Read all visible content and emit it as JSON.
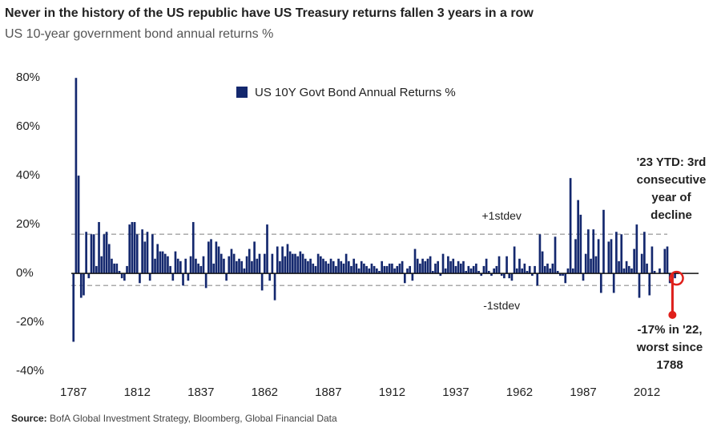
{
  "chart_data": {
    "type": "bar",
    "title": "Never in the history of the US republic have US Treasury returns fallen 3 years in a row",
    "subtitle": "US 10-year government bond annual returns %",
    "source_label": "Source:",
    "source": "BofA Global Investment Strategy, Bloomberg, Global Financial Data",
    "series": [
      {
        "name": "US 10Y Govt Bond Annual Returns %",
        "color": "#14286e",
        "values": [
          -28,
          80,
          40,
          -10,
          -9,
          17,
          -2,
          16,
          16,
          3,
          21,
          7,
          16,
          17,
          12,
          6,
          4,
          4,
          1,
          -2,
          -3,
          3,
          20,
          21,
          21,
          16,
          -4,
          18,
          13,
          17,
          -3,
          16,
          6,
          12,
          9,
          9,
          8,
          7,
          3,
          -3,
          9,
          6,
          5,
          -5,
          6,
          -3,
          7,
          21,
          6,
          4,
          3,
          7,
          -6,
          13,
          14,
          4,
          13,
          11,
          8,
          6,
          -3,
          7,
          10,
          8,
          5,
          6,
          5,
          2,
          7,
          10,
          5,
          13,
          6,
          8,
          -7,
          8,
          20,
          -3,
          8,
          -11,
          11,
          5,
          11,
          7,
          12,
          9,
          8,
          8,
          7,
          9,
          8,
          6,
          5,
          6,
          4,
          3,
          8,
          7,
          6,
          5,
          4,
          6,
          5,
          3,
          6,
          5,
          4,
          8,
          5,
          3,
          6,
          4,
          2,
          5,
          4,
          3,
          2,
          4,
          3,
          2,
          1,
          5,
          3,
          3,
          4,
          4,
          2,
          3,
          4,
          5,
          -4,
          2,
          3,
          -3,
          10,
          6,
          4,
          6,
          5,
          6,
          7,
          1,
          4,
          5,
          -1,
          8,
          2,
          7,
          5,
          6,
          3,
          5,
          4,
          5,
          1,
          3,
          2,
          3,
          4,
          1,
          -1,
          3,
          6,
          1,
          -1,
          2,
          3,
          7,
          -1,
          -2,
          7,
          -2,
          -3,
          11,
          2,
          6,
          2,
          4,
          1,
          3,
          -1,
          3,
          -5,
          16,
          9,
          3,
          4,
          2,
          4,
          15,
          1,
          -1,
          -1,
          -4,
          2,
          39,
          2,
          14,
          30,
          24,
          -3,
          8,
          18,
          6,
          18,
          7,
          14,
          -8,
          26,
          0,
          13,
          14,
          -8,
          17,
          5,
          16,
          2,
          5,
          3,
          2,
          10,
          20,
          -10,
          8,
          17,
          4,
          -9,
          11,
          1,
          0,
          2,
          0,
          10,
          11,
          -4,
          -17,
          -2
        ]
      }
    ],
    "x": [
      1787,
      1788,
      1789,
      1790,
      1791,
      1792,
      1793,
      1794,
      1795,
      1796,
      1797,
      1798,
      1799,
      1800,
      1801,
      1802,
      1803,
      1804,
      1805,
      1806,
      1807,
      1808,
      1809,
      1810,
      1811,
      1812,
      1813,
      1814,
      1815,
      1816,
      1817,
      1818,
      1819,
      1820,
      1821,
      1822,
      1823,
      1824,
      1825,
      1826,
      1827,
      1828,
      1829,
      1830,
      1831,
      1832,
      1833,
      1834,
      1835,
      1836,
      1837,
      1838,
      1839,
      1840,
      1841,
      1842,
      1843,
      1844,
      1845,
      1846,
      1847,
      1848,
      1849,
      1850,
      1851,
      1852,
      1853,
      1854,
      1855,
      1856,
      1857,
      1858,
      1859,
      1860,
      1861,
      1862,
      1863,
      1864,
      1865,
      1866,
      1867,
      1868,
      1869,
      1870,
      1871,
      1872,
      1873,
      1874,
      1875,
      1876,
      1877,
      1878,
      1879,
      1880,
      1881,
      1882,
      1883,
      1884,
      1885,
      1886,
      1887,
      1888,
      1889,
      1890,
      1891,
      1892,
      1893,
      1894,
      1895,
      1896,
      1897,
      1898,
      1899,
      1900,
      1901,
      1902,
      1903,
      1904,
      1905,
      1906,
      1907,
      1908,
      1909,
      1910,
      1911,
      1912,
      1913,
      1914,
      1915,
      1916,
      1917,
      1918,
      1919,
      1920,
      1921,
      1922,
      1923,
      1924,
      1925,
      1926,
      1927,
      1928,
      1929,
      1930,
      1931,
      1932,
      1933,
      1934,
      1935,
      1936,
      1937,
      1938,
      1939,
      1940,
      1941,
      1942,
      1943,
      1944,
      1945,
      1946,
      1947,
      1948,
      1949,
      1950,
      1951,
      1952,
      1953,
      1954,
      1955,
      1956,
      1957,
      1958,
      1959,
      1960,
      1961,
      1962,
      1963,
      1964,
      1965,
      1966,
      1967,
      1968,
      1969,
      1970,
      1971,
      1972,
      1973,
      1974,
      1975,
      1976,
      1977,
      1978,
      1979,
      1980,
      1981,
      1982,
      1983,
      1984,
      1985,
      1986,
      1987,
      1988,
      1989,
      1990,
      1991,
      1992,
      1993,
      1994,
      1995,
      1996,
      1997,
      1998,
      1999,
      2000,
      2001,
      2002,
      2003,
      2004,
      2005,
      2006,
      2007,
      2008,
      2009,
      2010,
      2011,
      2012,
      2013,
      2014,
      2015,
      2016,
      2017,
      2018,
      2019,
      2020,
      2021,
      2022,
      2023
    ],
    "xlim": [
      1783,
      2031
    ],
    "xticks": [
      1787,
      1812,
      1837,
      1862,
      1887,
      1912,
      1937,
      1962,
      1987,
      2012
    ],
    "ylim": [
      -40,
      84
    ],
    "yticks": [
      {
        "value": -40,
        "label": "-40%"
      },
      {
        "value": -20,
        "label": "-20%"
      },
      {
        "value": 0,
        "label": "0%"
      },
      {
        "value": 20,
        "label": "20%"
      },
      {
        "value": 40,
        "label": "40%"
      },
      {
        "value": 60,
        "label": "60%"
      },
      {
        "value": 80,
        "label": "80%"
      }
    ],
    "reference_lines": [
      {
        "value": 16,
        "label": "+1stdev"
      },
      {
        "value": -5,
        "label": "-1stdev"
      }
    ],
    "legend": "top",
    "annotation_color": "#e0201b",
    "annotations": [
      {
        "lines": [
          "'23 YTD: 3rd",
          "consecutive",
          "year of",
          "decline"
        ]
      },
      {
        "lines": [
          "-17% in '22,",
          "worst since",
          "1788"
        ]
      }
    ]
  }
}
